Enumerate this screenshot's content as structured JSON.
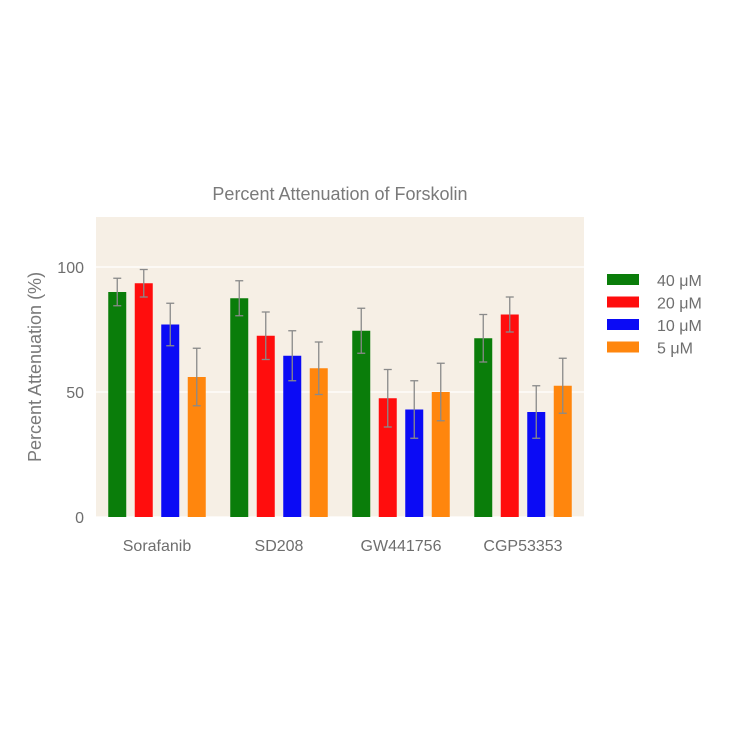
{
  "chart_data": {
    "type": "bar",
    "title": "Percent Attenuation of Forskolin",
    "xlabel": "",
    "ylabel": "Percent Attenuation (%)",
    "ylim": [
      0,
      120
    ],
    "yticks": [
      0,
      50,
      100
    ],
    "categories": [
      "Sorafanib",
      "SD208",
      "GW441756",
      "CGP53353"
    ],
    "series": [
      {
        "name": "40 μM",
        "color": "#0a7d0a",
        "values": [
          90,
          87.5,
          74.5,
          71.5
        ],
        "errors": [
          5.5,
          7,
          9,
          9.5
        ]
      },
      {
        "name": "20 μM",
        "color": "#ff0d0d",
        "values": [
          93.5,
          72.5,
          47.5,
          81
        ],
        "errors": [
          5.5,
          9.5,
          11.5,
          7
        ]
      },
      {
        "name": "10 μM",
        "color": "#0b0bf5",
        "values": [
          77,
          64.5,
          43,
          42
        ],
        "errors": [
          8.5,
          10,
          11.5,
          10.5
        ]
      },
      {
        "name": "5 μM",
        "color": "#ff860d",
        "values": [
          56,
          59.5,
          50,
          52.5
        ],
        "errors": [
          11.5,
          10.5,
          11.5,
          11
        ]
      }
    ],
    "legend_position": "right",
    "grid": true,
    "plot_background": "#f6efe5",
    "error_bar_color": "#8a8a8a"
  }
}
